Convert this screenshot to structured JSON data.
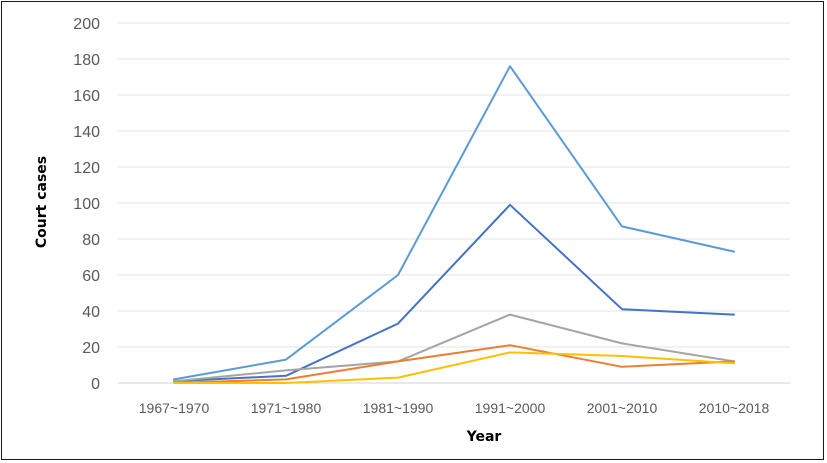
{
  "chart_data": {
    "type": "line",
    "title": "",
    "xlabel": "Year",
    "ylabel": "Court cases",
    "ylim": [
      0,
      200
    ],
    "ytick_step": 20,
    "grid": "horizontal",
    "legend": "none",
    "categories": [
      "1967~1970",
      "1971~1980",
      "1981~1990",
      "1991~2000",
      "2001~2010",
      "2010~2018"
    ],
    "series": [
      {
        "color": "#5B9BD5",
        "values": [
          2,
          13,
          60,
          176,
          87,
          73
        ]
      },
      {
        "color": "#4472C4",
        "values": [
          1,
          4,
          33,
          99,
          41,
          38
        ]
      },
      {
        "color": "#A5A5A5",
        "values": [
          1,
          7,
          12,
          38,
          22,
          12
        ]
      },
      {
        "color": "#ED7D31",
        "values": [
          0,
          2,
          12,
          21,
          9,
          12
        ]
      },
      {
        "color": "#FFC000",
        "values": [
          0,
          0,
          3,
          17,
          15,
          11
        ]
      }
    ]
  }
}
